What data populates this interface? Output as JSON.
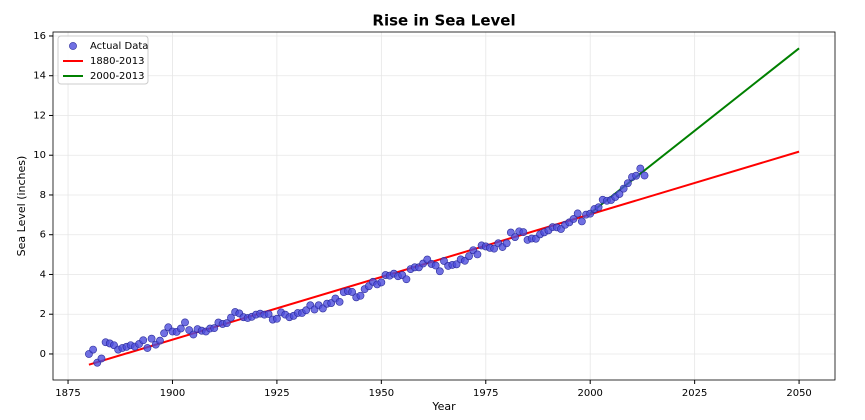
{
  "chart_data": {
    "type": "scatter",
    "title": "Rise in Sea Level",
    "x_label": "Year",
    "y_label": "Sea Level (inches)",
    "xlim": [
      1871.4,
      2058.6
    ],
    "ylim": [
      -1.31,
      16.2
    ],
    "xticks": [
      1875,
      1900,
      1925,
      1950,
      1975,
      2000,
      2025,
      2050
    ],
    "yticks": [
      0,
      2,
      4,
      6,
      8,
      10,
      12,
      14,
      16
    ],
    "grid": true,
    "legend": "upper-left",
    "series": [
      {
        "name": "Actual Data",
        "kind": "scatter",
        "color": "#4c4cdc",
        "x": [
          1880,
          1881,
          1882,
          1883,
          1884,
          1885,
          1886,
          1887,
          1888,
          1889,
          1890,
          1891,
          1892,
          1893,
          1894,
          1895,
          1896,
          1897,
          1898,
          1899,
          1900,
          1901,
          1902,
          1903,
          1904,
          1905,
          1906,
          1907,
          1908,
          1909,
          1910,
          1911,
          1912,
          1913,
          1914,
          1915,
          1916,
          1917,
          1918,
          1919,
          1920,
          1921,
          1922,
          1923,
          1924,
          1925,
          1926,
          1927,
          1928,
          1929,
          1930,
          1931,
          1932,
          1933,
          1934,
          1935,
          1936,
          1937,
          1938,
          1939,
          1940,
          1941,
          1942,
          1943,
          1944,
          1945,
          1946,
          1947,
          1948,
          1949,
          1950,
          1951,
          1952,
          1953,
          1954,
          1955,
          1956,
          1957,
          1958,
          1959,
          1960,
          1961,
          1962,
          1963,
          1964,
          1965,
          1966,
          1967,
          1968,
          1969,
          1970,
          1971,
          1972,
          1973,
          1974,
          1975,
          1976,
          1977,
          1978,
          1979,
          1980,
          1981,
          1982,
          1983,
          1984,
          1985,
          1986,
          1987,
          1988,
          1989,
          1990,
          1991,
          1992,
          1993,
          1994,
          1995,
          1996,
          1997,
          1998,
          1999,
          2000,
          2001,
          2002,
          2003,
          2004,
          2005,
          2006,
          2007,
          2008,
          2009,
          2010,
          2011,
          2012,
          2013
        ],
        "values": [
          0.0,
          0.22,
          -0.44,
          -0.23,
          0.59,
          0.53,
          0.44,
          0.22,
          0.3,
          0.36,
          0.44,
          0.37,
          0.5,
          0.69,
          0.3,
          0.77,
          0.47,
          0.67,
          1.04,
          1.34,
          1.13,
          1.11,
          1.28,
          1.59,
          1.2,
          0.98,
          1.25,
          1.17,
          1.13,
          1.28,
          1.3,
          1.58,
          1.51,
          1.55,
          1.83,
          2.11,
          2.04,
          1.85,
          1.81,
          1.87,
          1.98,
          2.03,
          1.98,
          2.01,
          1.73,
          1.77,
          2.09,
          1.98,
          1.85,
          1.92,
          2.06,
          2.06,
          2.2,
          2.45,
          2.24,
          2.45,
          2.29,
          2.53,
          2.56,
          2.79,
          2.62,
          3.11,
          3.16,
          3.12,
          2.85,
          2.93,
          3.26,
          3.41,
          3.63,
          3.5,
          3.6,
          3.97,
          3.94,
          4.04,
          3.91,
          3.97,
          3.76,
          4.27,
          4.36,
          4.36,
          4.55,
          4.75,
          4.53,
          4.45,
          4.16,
          4.68,
          4.43,
          4.48,
          4.51,
          4.76,
          4.69,
          4.92,
          5.22,
          5.01,
          5.46,
          5.41,
          5.34,
          5.3,
          5.57,
          5.38,
          5.57,
          6.11,
          5.88,
          6.17,
          6.13,
          5.74,
          5.81,
          5.8,
          6.02,
          6.12,
          6.22,
          6.38,
          6.37,
          6.29,
          6.5,
          6.62,
          6.79,
          7.07,
          6.67,
          7.01,
          7.06,
          7.29,
          7.38,
          7.76,
          7.71,
          7.75,
          7.9,
          8.05,
          8.32,
          8.59,
          8.9,
          8.97,
          9.33,
          8.98
        ]
      },
      {
        "name": "1880-2013",
        "kind": "line",
        "color": "#ff0000",
        "x": [
          1880,
          2050
        ],
        "values": [
          -0.54,
          10.18
        ]
      },
      {
        "name": "2000-2013",
        "kind": "line",
        "color": "#008000",
        "x": [
          2000,
          2050
        ],
        "values": [
          7.08,
          15.38
        ]
      }
    ]
  }
}
